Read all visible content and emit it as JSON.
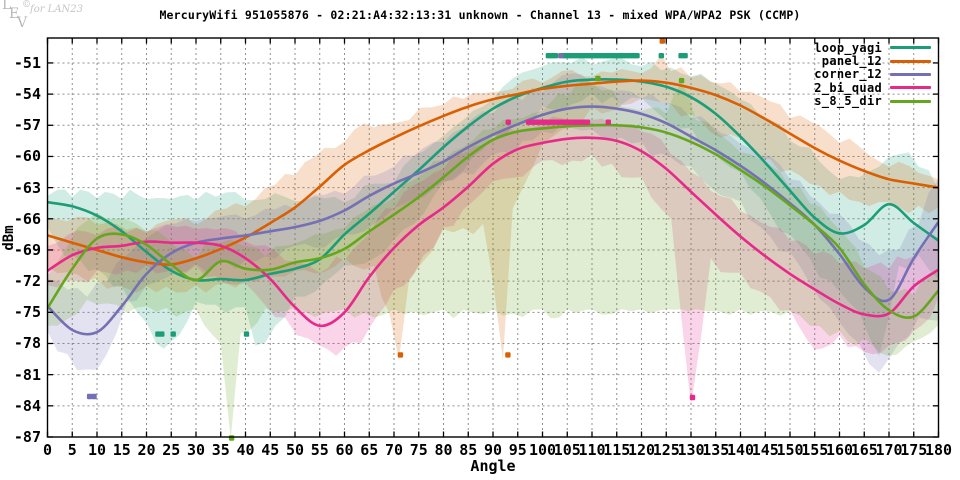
{
  "title": "MercuryWifi 951055876 - 02:21:A4:32:13:31 unknown - Channel 13 - mixed WPA/WPA2 PSK (CCMP)",
  "watermark": {
    "l1": "L",
    "l2": "E",
    "l3": "V",
    "copyright": "©",
    "brand": "for LAN23"
  },
  "axes": {
    "xlabel": "Angle",
    "ylabel": "dBm",
    "x_ticks": [
      0,
      5,
      10,
      15,
      20,
      25,
      30,
      35,
      40,
      45,
      50,
      55,
      60,
      65,
      70,
      75,
      80,
      85,
      90,
      95,
      100,
      105,
      110,
      115,
      120,
      125,
      130,
      135,
      140,
      145,
      150,
      155,
      160,
      165,
      170,
      175,
      180
    ],
    "y_ticks": [
      -51,
      -54,
      -57,
      -60,
      -63,
      -66,
      -69,
      -72,
      -75,
      -78,
      -81,
      -84,
      -87
    ]
  },
  "chart_data": {
    "type": "line",
    "title": "MercuryWifi 951055876 - 02:21:A4:32:13:31 unknown - Channel 13 - mixed WPA/WPA2 PSK (CCMP)",
    "xlabel": "Angle",
    "ylabel": "dBm",
    "xlim": [
      0,
      180
    ],
    "ylim": [
      -87,
      -48.6
    ],
    "grid": true,
    "legend_position": "top-right",
    "x": [
      0,
      5,
      10,
      15,
      20,
      25,
      30,
      35,
      40,
      45,
      50,
      55,
      60,
      65,
      70,
      75,
      80,
      85,
      90,
      95,
      100,
      105,
      110,
      115,
      120,
      125,
      130,
      135,
      140,
      145,
      150,
      155,
      160,
      165,
      170,
      175,
      180
    ],
    "series": [
      {
        "name": "loop_yagi",
        "color": "#1b9e77",
        "values": [
          -64.4,
          -64.8,
          -65.7,
          -67.2,
          -69.2,
          -71.0,
          -71.9,
          -71.8,
          -71.9,
          -71.3,
          -70.8,
          -69.9,
          -67.5,
          -65.5,
          -63.4,
          -61.3,
          -59.1,
          -57.1,
          -55.4,
          -54.2,
          -53.4,
          -52.8,
          -52.6,
          -52.6,
          -52.8,
          -53.3,
          -54.3,
          -55.9,
          -58.1,
          -60.6,
          -63.3,
          -65.9,
          -67.4,
          -66.6,
          -64.6,
          -66.4,
          -68.1
        ],
        "band": {
          "x": [
            0,
            2,
            5,
            10,
            15,
            20,
            22,
            25,
            30,
            40,
            42,
            50,
            60,
            70,
            80,
            90,
            100,
            110,
            120,
            130,
            140,
            150,
            160,
            164,
            168,
            172,
            176,
            180
          ],
          "upper": [
            -63.8,
            -63.2,
            -63.9,
            -64.0,
            -64.1,
            -64.1,
            -64.0,
            -64.1,
            -64.2,
            -64.2,
            -64.2,
            -64.3,
            -64.4,
            -62.5,
            -58.0,
            -54.5,
            -51.3,
            -51.2,
            -51.3,
            -52.3,
            -54.5,
            -58.5,
            -62.2,
            -62.0,
            -61.0,
            -59.8,
            -61.0,
            -63.2
          ],
          "lower": [
            -66.8,
            -68.5,
            -69.5,
            -70.8,
            -72.5,
            -76.0,
            -78.0,
            -77.8,
            -74.0,
            -74.5,
            -78.2,
            -73.5,
            -70.5,
            -68.0,
            -62.5,
            -58.0,
            -55.2,
            -53.9,
            -54.4,
            -57.2,
            -61.5,
            -67.5,
            -73.0,
            -75.0,
            -79.2,
            -70.5,
            -69.5,
            -71.8
          ]
        },
        "points": [
          [
            101.2,
            -50.3
          ],
          [
            101.9,
            -50.3
          ],
          [
            102.6,
            -50.3
          ],
          [
            104.4,
            -50.3
          ],
          [
            105.1,
            -50.3
          ],
          [
            105.8,
            -50.3
          ],
          [
            106.5,
            -50.3
          ],
          [
            107.2,
            -50.3
          ],
          [
            107.9,
            -50.3
          ],
          [
            108.6,
            -50.3
          ],
          [
            109.3,
            -50.3
          ],
          [
            110.0,
            -50.3
          ],
          [
            110.7,
            -50.3
          ],
          [
            111.4,
            -50.3
          ],
          [
            112.1,
            -50.3
          ],
          [
            112.8,
            -50.3
          ],
          [
            113.5,
            -50.3
          ],
          [
            114.2,
            -50.3
          ],
          [
            114.9,
            -50.3
          ],
          [
            115.6,
            -50.3
          ],
          [
            116.3,
            -50.3
          ],
          [
            117.0,
            -50.3
          ],
          [
            117.7,
            -50.3
          ],
          [
            118.4,
            -50.3
          ],
          [
            119.1,
            -50.3
          ],
          [
            124.0,
            -50.3
          ],
          [
            128.0,
            -50.3
          ],
          [
            128.8,
            -50.3
          ],
          [
            22.3,
            -77.1
          ],
          [
            23.1,
            -77.1
          ],
          [
            25.4,
            -77.1
          ],
          [
            40.2,
            -77.1
          ]
        ]
      },
      {
        "name": "panel_12",
        "color": "#d95f02",
        "values": [
          -67.6,
          -68.3,
          -69.0,
          -69.7,
          -70.2,
          -70.4,
          -69.8,
          -68.9,
          -67.8,
          -66.4,
          -64.9,
          -62.9,
          -60.8,
          -59.4,
          -58.2,
          -57.1,
          -56.1,
          -55.2,
          -54.5,
          -54.0,
          -53.5,
          -53.2,
          -53.0,
          -52.8,
          -52.7,
          -52.9,
          -53.4,
          -54.1,
          -55.1,
          -56.4,
          -57.8,
          -59.2,
          -60.4,
          -61.4,
          -62.2,
          -62.6,
          -63.0
        ],
        "band": {
          "x": [
            0,
            10,
            20,
            30,
            40,
            50,
            60,
            66,
            69,
            71,
            73,
            80,
            88,
            90,
            92,
            94,
            100,
            110,
            120,
            122,
            124,
            126,
            130,
            140,
            150,
            160,
            170,
            180
          ],
          "upper": [
            -66.0,
            -66.6,
            -67.4,
            -66.6,
            -64.8,
            -61.8,
            -58.6,
            -57.2,
            -56.9,
            -56.7,
            -56.5,
            -55.0,
            -53.9,
            -53.8,
            -53.7,
            -53.5,
            -52.9,
            -52.3,
            -52.0,
            -51.5,
            -50.2,
            -51.8,
            -52.4,
            -53.8,
            -56.3,
            -58.7,
            -61.0,
            -62.2
          ],
          "lower": [
            -70.6,
            -71.7,
            -72.5,
            -72.4,
            -71.8,
            -71.0,
            -69.8,
            -70.5,
            -75.0,
            -79.6,
            -72.0,
            -67.0,
            -66.5,
            -72.0,
            -79.6,
            -65.0,
            -58.8,
            -55.2,
            -54.4,
            -54.6,
            -54.8,
            -55.0,
            -55.9,
            -58.3,
            -61.3,
            -63.4,
            -64.4,
            -64.9
          ]
        },
        "points": [
          [
            71.3,
            -79.1
          ],
          [
            93.0,
            -79.1
          ],
          [
            124.2,
            -48.9
          ]
        ]
      },
      {
        "name": "corner_12",
        "color": "#7570b3",
        "values": [
          -74.4,
          -76.7,
          -76.9,
          -74.4,
          -71.3,
          -69.3,
          -68.3,
          -67.9,
          -67.6,
          -67.2,
          -66.8,
          -66.2,
          -65.2,
          -63.8,
          -62.6,
          -61.6,
          -60.5,
          -59.1,
          -57.9,
          -56.9,
          -56.0,
          -55.4,
          -55.2,
          -55.4,
          -55.9,
          -56.8,
          -58.1,
          -59.4,
          -60.9,
          -62.6,
          -64.5,
          -66.6,
          -69.4,
          -72.6,
          -73.8,
          -69.8,
          -66.3
        ],
        "band": {
          "x": [
            0,
            4,
            8,
            12,
            16,
            20,
            30,
            40,
            50,
            60,
            70,
            80,
            90,
            100,
            104,
            110,
            120,
            130,
            140,
            150,
            158,
            164,
            168,
            172,
            176,
            180
          ],
          "upper": [
            -71.8,
            -72.8,
            -73.5,
            -72.0,
            -69.5,
            -67.8,
            -66.2,
            -66.0,
            -65.0,
            -63.6,
            -61.0,
            -58.6,
            -55.9,
            -53.8,
            -52.2,
            -53.2,
            -54.4,
            -56.3,
            -58.8,
            -62.2,
            -65.5,
            -68.0,
            -69.5,
            -69.0,
            -66.5,
            -62.2
          ],
          "lower": [
            -76.8,
            -79.0,
            -80.5,
            -79.0,
            -74.0,
            -72.4,
            -70.3,
            -70.0,
            -68.6,
            -67.5,
            -65.0,
            -62.4,
            -59.8,
            -57.6,
            -57.0,
            -57.4,
            -58.6,
            -61.0,
            -64.3,
            -69.2,
            -74.5,
            -78.0,
            -80.8,
            -78.0,
            -75.5,
            -75.8
          ]
        },
        "points": [
          [
            8.5,
            -83.1
          ],
          [
            9.4,
            -83.1
          ],
          [
            103.7,
            -50.3
          ]
        ]
      },
      {
        "name": "2_bi_quad",
        "color": "#e7298a",
        "values": [
          -71.0,
          -69.5,
          -68.8,
          -68.6,
          -68.2,
          -68.3,
          -68.3,
          -68.6,
          -69.8,
          -71.8,
          -74.5,
          -76.3,
          -75.0,
          -71.6,
          -68.8,
          -66.6,
          -64.9,
          -62.9,
          -60.7,
          -59.3,
          -58.7,
          -58.3,
          -58.2,
          -58.5,
          -59.5,
          -61.2,
          -63.4,
          -65.6,
          -67.7,
          -69.6,
          -71.3,
          -72.8,
          -74.2,
          -75.2,
          -75.1,
          -72.5,
          -70.9
        ],
        "band": {
          "x": [
            0,
            10,
            20,
            30,
            40,
            48,
            55,
            60,
            65,
            70,
            80,
            90,
            100,
            110,
            120,
            126,
            130,
            134,
            140,
            150,
            155,
            160,
            165,
            170,
            175,
            180
          ],
          "upper": [
            -68.6,
            -67.6,
            -67.2,
            -67.0,
            -68.2,
            -70.0,
            -71.2,
            -70.0,
            -67.5,
            -65.0,
            -61.2,
            -58.4,
            -57.0,
            -56.5,
            -57.6,
            -59.8,
            -61.5,
            -63.3,
            -65.3,
            -68.1,
            -69.4,
            -70.3,
            -70.8,
            -70.8,
            -69.6,
            -67.8
          ],
          "lower": [
            -72.4,
            -71.0,
            -70.5,
            -70.5,
            -72.2,
            -75.5,
            -78.2,
            -78.4,
            -76.5,
            -72.8,
            -66.8,
            -62.4,
            -60.4,
            -59.8,
            -62.0,
            -66.0,
            -84.0,
            -69.8,
            -71.2,
            -74.8,
            -78.6,
            -77.2,
            -78.8,
            -78.2,
            -76.8,
            -73.6
          ]
        },
        "points": [
          [
            93.1,
            -56.7
          ],
          [
            97.2,
            -56.7
          ],
          [
            97.9,
            -56.7
          ],
          [
            98.6,
            -56.7
          ],
          [
            99.3,
            -56.7
          ],
          [
            100.0,
            -56.7
          ],
          [
            100.7,
            -56.7
          ],
          [
            101.4,
            -56.7
          ],
          [
            102.1,
            -56.7
          ],
          [
            102.8,
            -56.7
          ],
          [
            103.5,
            -56.7
          ],
          [
            104.2,
            -56.7
          ],
          [
            104.9,
            -56.7
          ],
          [
            105.6,
            -56.7
          ],
          [
            106.3,
            -56.7
          ],
          [
            107.0,
            -56.7
          ],
          [
            107.7,
            -56.7
          ],
          [
            108.4,
            -56.7
          ],
          [
            109.1,
            -56.7
          ],
          [
            113.3,
            -56.7
          ],
          [
            130.3,
            -83.2
          ]
        ]
      },
      {
        "name": "s_8_5_dir",
        "color": "#66a61e",
        "values": [
          -74.6,
          -70.8,
          -67.9,
          -67.5,
          -68.5,
          -70.4,
          -71.9,
          -70.1,
          -70.8,
          -70.9,
          -70.2,
          -69.8,
          -68.9,
          -67.2,
          -65.6,
          -63.9,
          -62.0,
          -60.0,
          -58.4,
          -57.6,
          -57.3,
          -57.1,
          -57.0,
          -57.0,
          -57.2,
          -57.7,
          -58.6,
          -59.8,
          -61.3,
          -62.9,
          -64.7,
          -66.6,
          -68.8,
          -72.3,
          -74.8,
          -75.4,
          -72.9
        ],
        "band": {
          "x": [
            0,
            8,
            14,
            20,
            30,
            35,
            37,
            39,
            44,
            50,
            60,
            70,
            80,
            90,
            100,
            105,
            110,
            116,
            120,
            125,
            128,
            131,
            140,
            150,
            160,
            165,
            170,
            175,
            180
          ],
          "upper": [
            -71.5,
            -66.2,
            -66.0,
            -67.2,
            -69.9,
            -68.3,
            -68.0,
            -68.5,
            -69.6,
            -68.4,
            -66.9,
            -64.0,
            -60.4,
            -57.4,
            -55.6,
            -54.2,
            -52.9,
            -55.2,
            -55.6,
            -55.9,
            -52.9,
            -56.5,
            -59.6,
            -63.0,
            -67.0,
            -70.6,
            -72.9,
            -73.4,
            -71.2
          ],
          "lower": [
            -76.3,
            -73.8,
            -74.3,
            -74.4,
            -74.7,
            -78.0,
            -87.2,
            -77.0,
            -74.6,
            -74.6,
            -74.7,
            -74.7,
            -74.7,
            -74.7,
            -74.7,
            -74.7,
            -74.7,
            -74.7,
            -74.7,
            -74.7,
            -74.7,
            -74.7,
            -74.7,
            -74.9,
            -76.8,
            -77.5,
            -79.2,
            -77.8,
            -76.2
          ]
        },
        "points": [
          [
            37.2,
            -87.1
          ],
          [
            111.2,
            -52.5
          ],
          [
            128.1,
            -52.7
          ]
        ]
      }
    ]
  }
}
